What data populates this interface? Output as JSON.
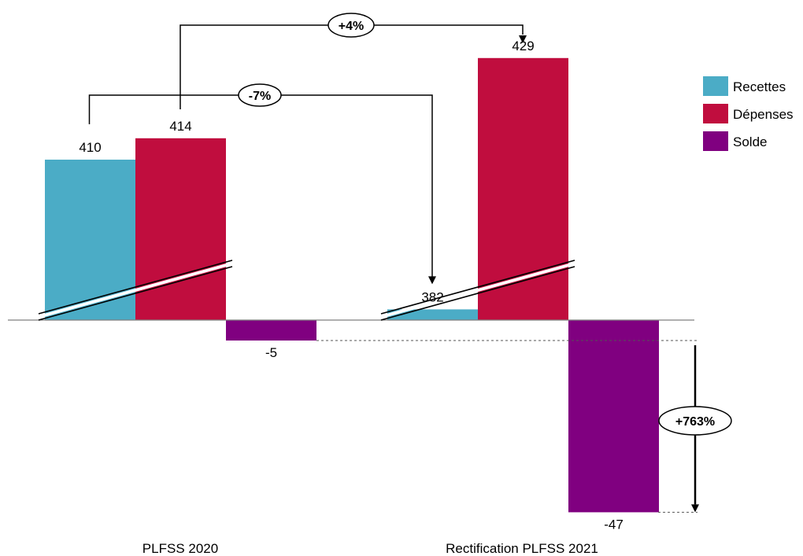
{
  "chart_data": {
    "type": "bar",
    "categories": [
      "PLFSS 2020",
      "Rectification PLFSS 2021"
    ],
    "series": [
      {
        "name": "Recettes",
        "color": "#4bacc6",
        "values": [
          410,
          382
        ]
      },
      {
        "name": "Dépenses",
        "color": "#c00d3e",
        "values": [
          414,
          429
        ]
      },
      {
        "name": "Solde",
        "color": "#800080",
        "values": [
          -5,
          -47
        ]
      }
    ],
    "data_labels": [
      [
        "410",
        "382"
      ],
      [
        "414",
        "429"
      ],
      [
        "-5",
        "-47"
      ]
    ],
    "axis_break": true,
    "legend_position": "right",
    "annotations": [
      {
        "label": "-7%",
        "from": "Recettes PLFSS 2020",
        "to": "Recettes Rectification PLFSS 2021"
      },
      {
        "label": "+4%",
        "from": "Dépenses PLFSS 2020",
        "to": "Dépenses Rectification PLFSS 2021"
      },
      {
        "label": "+763%",
        "from": "Solde PLFSS 2020",
        "to": "Solde Rectification PLFSS 2021"
      }
    ]
  }
}
